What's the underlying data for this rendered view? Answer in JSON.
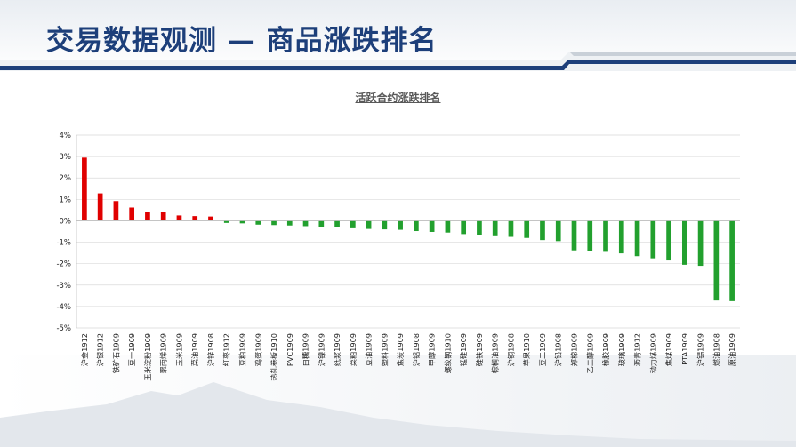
{
  "header": {
    "title": "交易数据观测 — 商品涨跌排名"
  },
  "colors": {
    "positive": "#e00000",
    "negative": "#22a02e",
    "title": "#1d3f7a",
    "header_bar": "#1d3f7a"
  },
  "chart_data": {
    "type": "bar",
    "title": "活跃合约涨跌排名",
    "xlabel": "",
    "ylabel": "",
    "ylim": [
      -5,
      4
    ],
    "yticks": [
      "4%",
      "3%",
      "2%",
      "1%",
      "0%",
      "-1%",
      "-2%",
      "-3%",
      "-4%",
      "-5%"
    ],
    "grid": true,
    "legend": "none",
    "categories": [
      "沪金1912",
      "沪银1912",
      "铁矿石1909",
      "豆一1909",
      "玉米淀粉1909",
      "聚丙烯1909",
      "玉米1909",
      "菜油1909",
      "沪锌1908",
      "红枣1912",
      "豆粕1909",
      "鸡蛋1909",
      "热轧卷板1910",
      "PVC1909",
      "白糖1909",
      "沪镍1909",
      "纸浆1909",
      "菜粕1909",
      "豆油1909",
      "塑料1909",
      "焦炭1909",
      "沪铝1908",
      "甲醇1909",
      "螺纹钢1910",
      "锰硅1909",
      "硅铁1909",
      "棕榈油1909",
      "沪铜1908",
      "苹果1910",
      "豆二1909",
      "沪铅1908",
      "郑棉1909",
      "乙二醇1909",
      "橡胶1909",
      "玻璃1909",
      "沥青1912",
      "动力煤1909",
      "焦煤1909",
      "PTA1909",
      "沪锡1909",
      "燃油1908",
      "原油1909"
    ],
    "values": [
      2.95,
      1.28,
      0.92,
      0.62,
      0.42,
      0.4,
      0.25,
      0.22,
      0.2,
      -0.1,
      -0.12,
      -0.18,
      -0.2,
      -0.22,
      -0.25,
      -0.28,
      -0.3,
      -0.35,
      -0.38,
      -0.4,
      -0.42,
      -0.48,
      -0.52,
      -0.55,
      -0.62,
      -0.65,
      -0.72,
      -0.75,
      -0.8,
      -0.9,
      -0.95,
      -1.38,
      -1.42,
      -1.45,
      -1.52,
      -1.65,
      -1.75,
      -1.85,
      -2.05,
      -2.1,
      -3.72,
      -3.75
    ]
  }
}
